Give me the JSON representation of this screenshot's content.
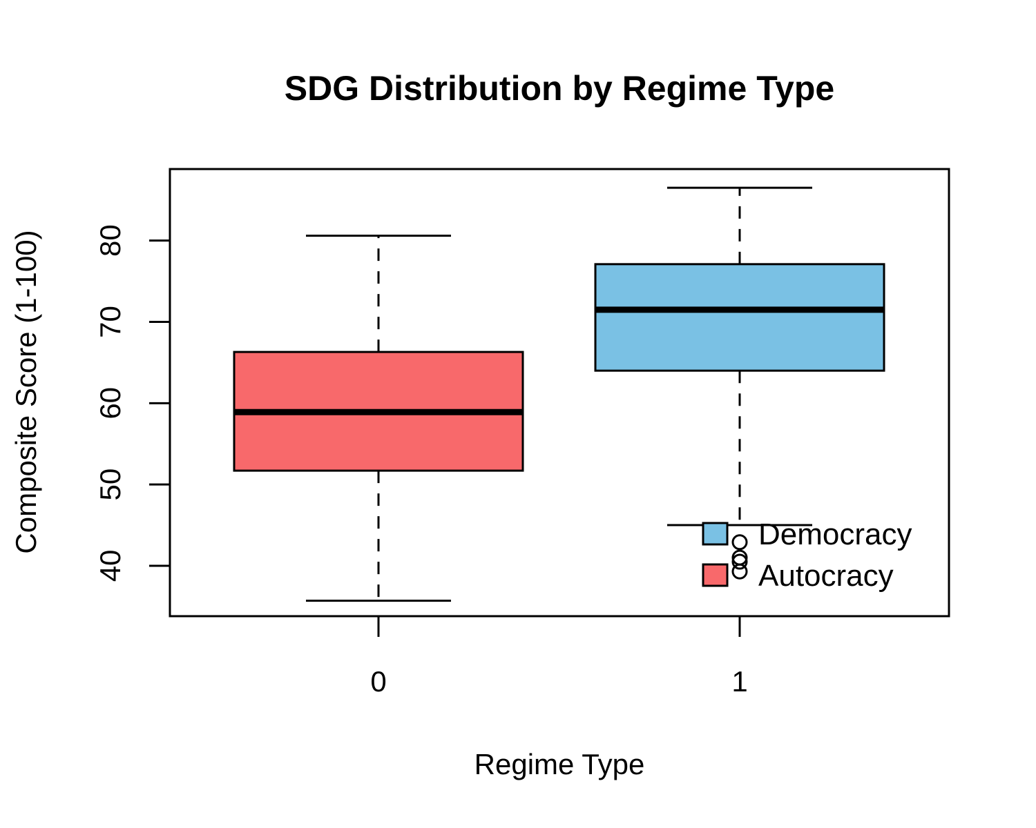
{
  "chart_data": {
    "type": "boxplot",
    "title": "SDG Distribution by Regime Type",
    "xlabel": "Regime Type",
    "ylabel": "Composite Score (1-100)",
    "categories": [
      "0",
      "1"
    ],
    "ylim": [
      33.8,
      88.8
    ],
    "yticks": [
      40,
      50,
      60,
      70,
      80
    ],
    "boxes": [
      {
        "category": "0",
        "whisker_low": 35.7,
        "q1": 51.7,
        "median": 58.9,
        "q3": 66.3,
        "whisker_high": 80.6,
        "outliers": [],
        "color": "#F8696B"
      },
      {
        "category": "1",
        "whisker_low": 45.0,
        "q1": 64.0,
        "median": 71.5,
        "q3": 77.1,
        "whisker_high": 86.5,
        "outliers": [
          42.9,
          41.0,
          40.5,
          39.3
        ],
        "color": "#7AC1E4"
      }
    ],
    "legend": {
      "position": "bottom-right",
      "items": [
        {
          "label": "Democracy",
          "color": "#7AC1E4"
        },
        {
          "label": "Autocracy",
          "color": "#F8696B"
        }
      ]
    }
  }
}
